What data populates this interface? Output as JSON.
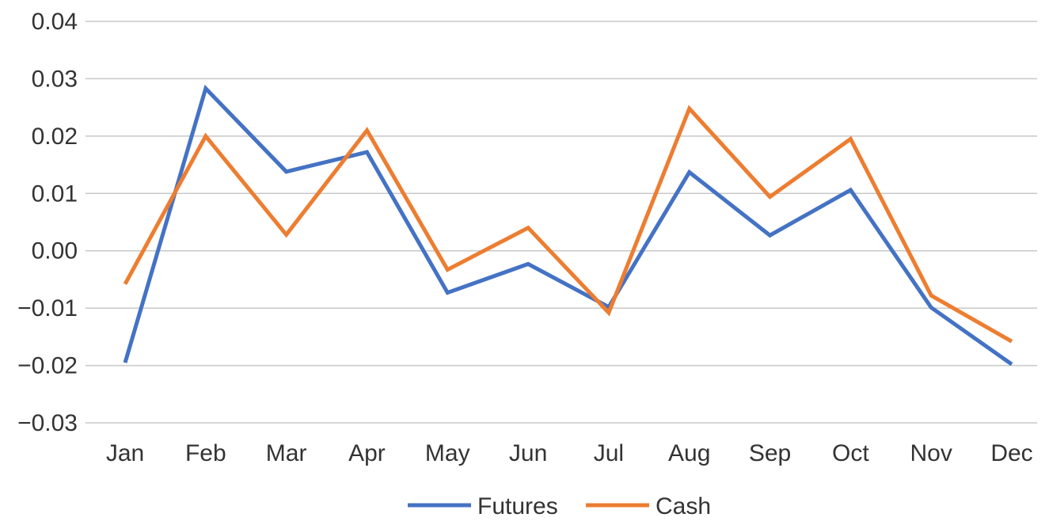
{
  "chart_data": {
    "type": "line",
    "title": "",
    "xlabel": "",
    "ylabel": "",
    "categories": [
      "Jan",
      "Feb",
      "Mar",
      "Apr",
      "May",
      "Jun",
      "Jul",
      "Aug",
      "Sep",
      "Oct",
      "Nov",
      "Dec"
    ],
    "ylim": [
      -0.03,
      0.04
    ],
    "yticks": [
      "0.04",
      "0.03",
      "0.02",
      "0.01",
      "0.00",
      "−0.01",
      "−0.02",
      "−0.03"
    ],
    "grid": "horizontal",
    "legend_position": "bottom",
    "series": [
      {
        "name": "Futures",
        "color": "#4472C4",
        "values": [
          -0.0195,
          0.0283,
          0.0138,
          0.0172,
          -0.0073,
          -0.0023,
          -0.0098,
          0.0137,
          0.0027,
          0.0106,
          -0.0099,
          -0.0198
        ]
      },
      {
        "name": "Cash",
        "color": "#ED7D31",
        "values": [
          -0.0058,
          0.02,
          0.0028,
          0.021,
          -0.0033,
          0.004,
          -0.0108,
          0.0248,
          0.0094,
          0.0195,
          -0.0078,
          -0.0158
        ]
      }
    ]
  }
}
